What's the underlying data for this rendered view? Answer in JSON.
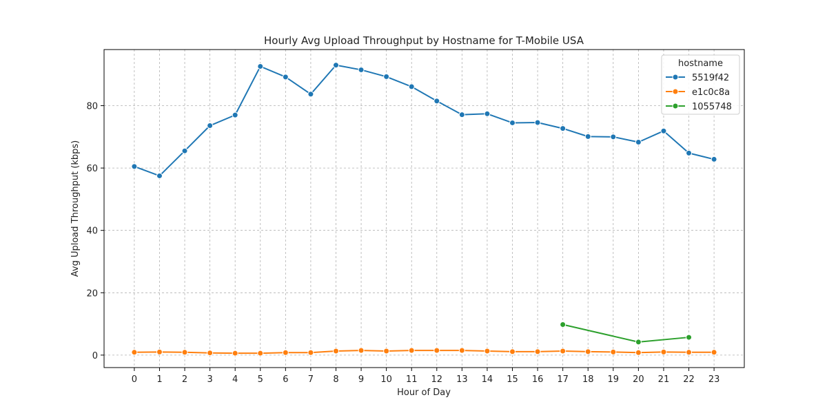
{
  "chart_data": {
    "type": "line",
    "title": "Hourly Avg Upload Throughput by Hostname for T-Mobile USA",
    "xlabel": "Hour of Day",
    "ylabel": "Avg Upload Throughput (kbps)",
    "xlim": [
      -1.2,
      24.2
    ],
    "ylim": [
      -4,
      98
    ],
    "x_ticks": [
      0,
      1,
      2,
      3,
      4,
      5,
      6,
      7,
      8,
      9,
      10,
      11,
      12,
      13,
      14,
      15,
      16,
      17,
      18,
      19,
      20,
      21,
      22,
      23
    ],
    "y_ticks": [
      0,
      20,
      40,
      60,
      80
    ],
    "grid": true,
    "legend": {
      "title": "hostname",
      "position": "top-right"
    },
    "series": [
      {
        "name": "5519f42",
        "color": "#1f77b4",
        "x": [
          0,
          1,
          2,
          3,
          4,
          5,
          6,
          7,
          8,
          9,
          10,
          11,
          12,
          13,
          14,
          15,
          16,
          17,
          18,
          19,
          20,
          21,
          22,
          23
        ],
        "values": [
          60.5,
          57.5,
          65.5,
          73.6,
          77.0,
          92.6,
          89.2,
          83.7,
          93.0,
          91.5,
          89.3,
          86.1,
          81.5,
          77.1,
          77.4,
          74.5,
          74.6,
          72.7,
          70.1,
          70.0,
          68.3,
          71.9,
          64.8,
          62.8
        ]
      },
      {
        "name": "e1c0c8a",
        "color": "#ff7f0e",
        "x": [
          0,
          1,
          2,
          3,
          4,
          5,
          6,
          7,
          8,
          9,
          10,
          11,
          12,
          13,
          14,
          15,
          16,
          17,
          18,
          19,
          20,
          21,
          22,
          23
        ],
        "values": [
          0.9,
          1.0,
          0.9,
          0.7,
          0.6,
          0.6,
          0.8,
          0.8,
          1.3,
          1.5,
          1.3,
          1.5,
          1.5,
          1.5,
          1.3,
          1.1,
          1.1,
          1.3,
          1.1,
          1.0,
          0.8,
          1.0,
          0.9,
          0.9
        ]
      },
      {
        "name": "1055748",
        "color": "#2ca02c",
        "x": [
          17,
          20,
          22
        ],
        "values": [
          9.8,
          4.2,
          5.7
        ]
      }
    ]
  }
}
